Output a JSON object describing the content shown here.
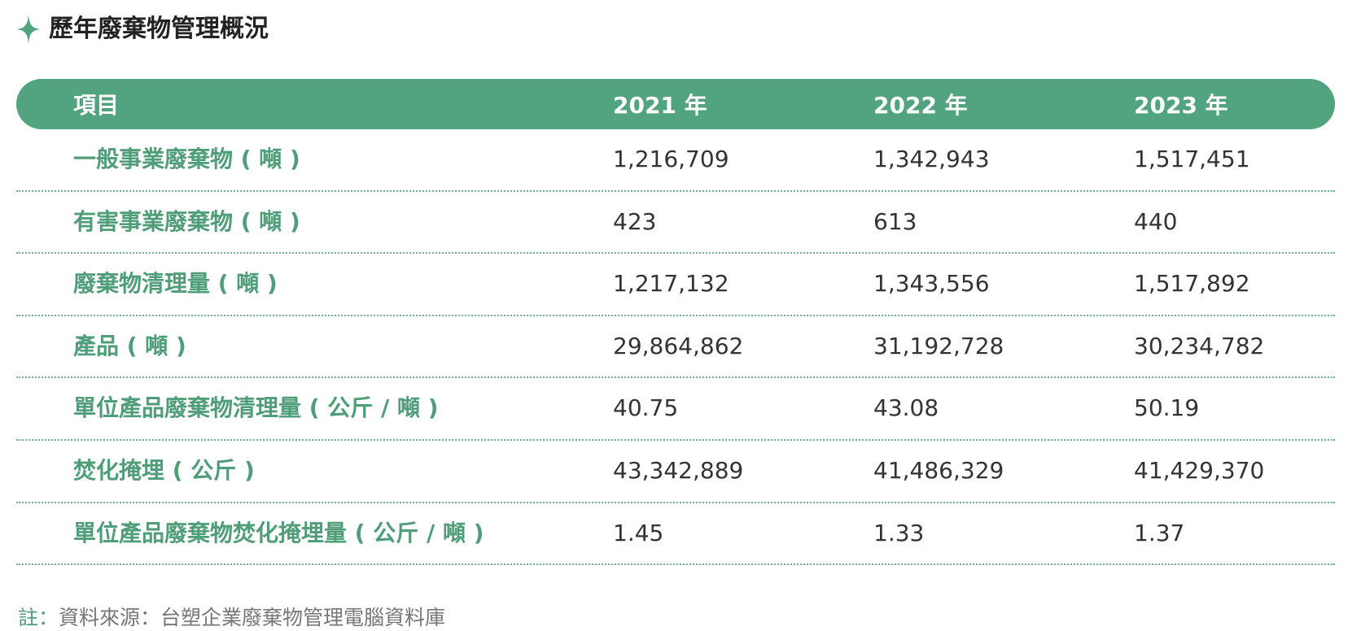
{
  "title": "歷年廢棄物管理概況",
  "colors": {
    "accent": "#52a47f",
    "label_text": "#4f9e79",
    "value_text": "#333333"
  },
  "icon": "four-point-star-icon",
  "table": {
    "headers": [
      "項目",
      "2021 年",
      "2022 年",
      "2023 年"
    ],
    "rows": [
      {
        "label": "一般事業廢棄物 ( 噸 )",
        "values": [
          "1,216,709",
          "1,342,943",
          "1,517,451"
        ]
      },
      {
        "label": "有害事業廢棄物 ( 噸 )",
        "values": [
          "423",
          "613",
          "440"
        ]
      },
      {
        "label": "廢棄物清理量 ( 噸 )",
        "values": [
          "1,217,132",
          "1,343,556",
          "1,517,892"
        ]
      },
      {
        "label": "產品 ( 噸 )",
        "values": [
          "29,864,862",
          "31,192,728",
          "30,234,782"
        ]
      },
      {
        "label": "單位產品廢棄物清理量 ( 公斤 / 噸 )",
        "values": [
          "40.75",
          "43.08",
          "50.19"
        ]
      },
      {
        "label": "焚化掩埋 ( 公斤 )",
        "values": [
          "43,342,889",
          "41,486,329",
          "41,429,370"
        ]
      },
      {
        "label": "單位產品廢棄物焚化掩埋量 ( 公斤 / 噸 )",
        "values": [
          "1.45",
          "1.33",
          "1.37"
        ]
      }
    ]
  },
  "note": {
    "prefix": "註：",
    "text": "資料來源：台塑企業廢棄物管理電腦資料庫"
  }
}
